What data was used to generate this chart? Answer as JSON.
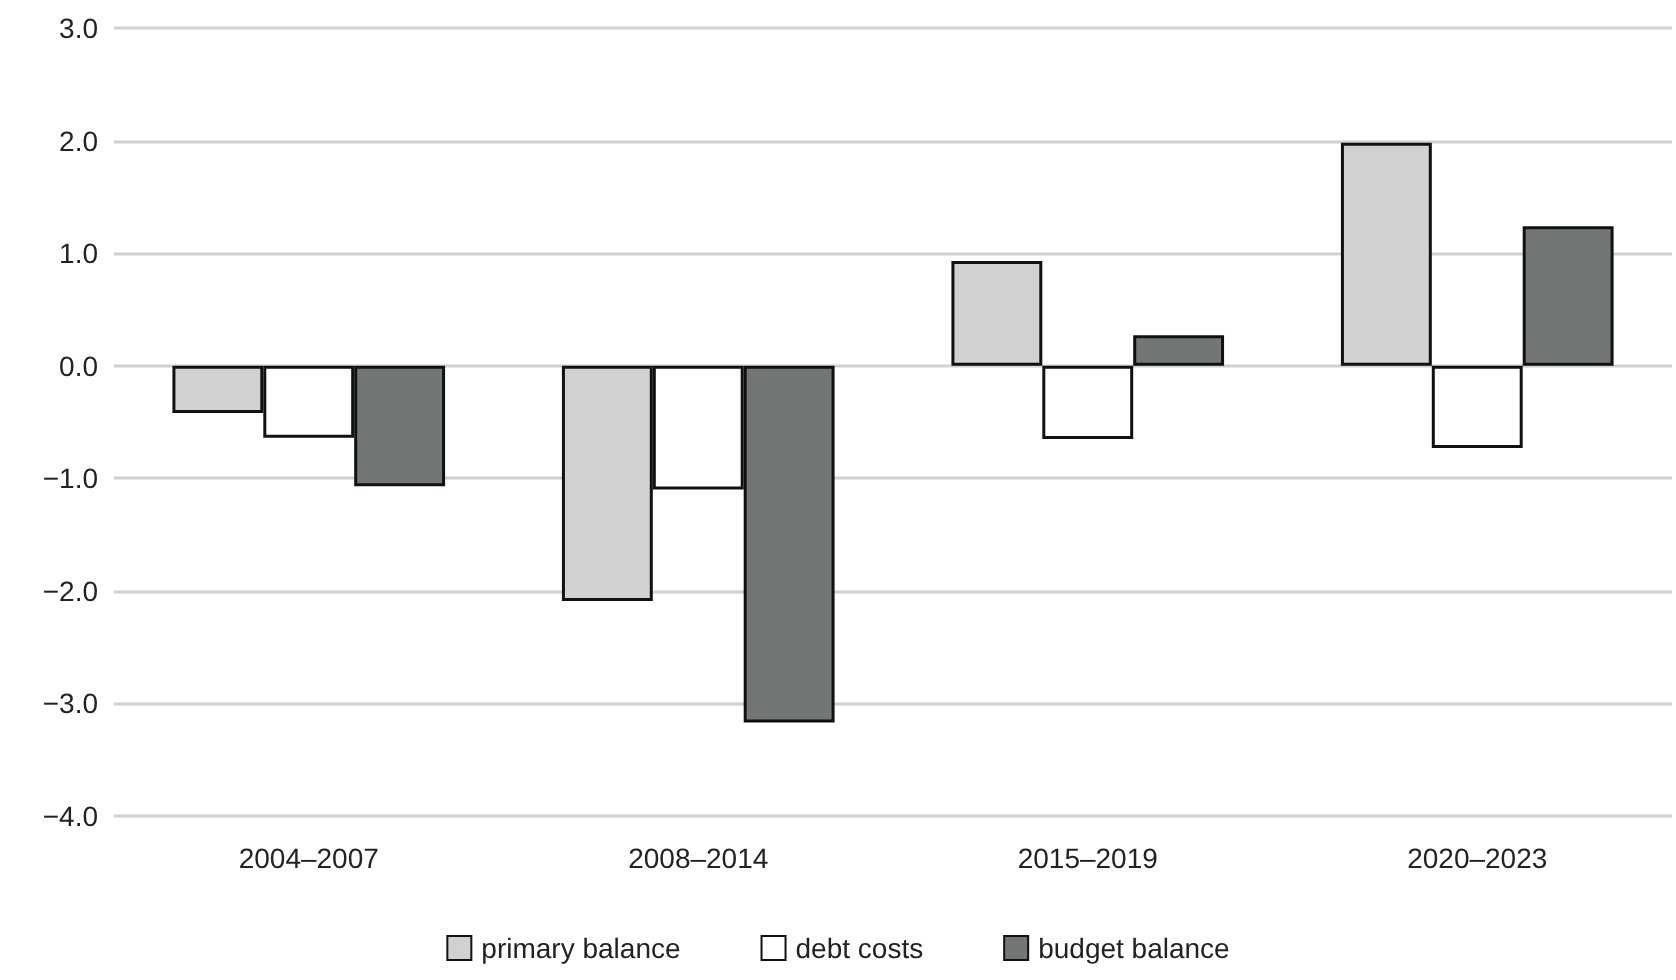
{
  "chart_data": {
    "type": "bar",
    "categories": [
      "2004–2007",
      "2008–2014",
      "2015–2019",
      "2020–2023"
    ],
    "series": [
      {
        "name": "primary balance",
        "color": "#d0d1d0",
        "values": [
          -0.42,
          -2.09,
          0.93,
          1.98
        ]
      },
      {
        "name": "debt costs",
        "color": "#ffffff",
        "values": [
          -0.64,
          -1.1,
          -0.65,
          -0.73
        ]
      },
      {
        "name": "budget balance",
        "color": "#737677",
        "values": [
          -1.07,
          -3.17,
          0.27,
          1.24
        ]
      }
    ],
    "ylim": [
      -4,
      3
    ],
    "yticks": [
      {
        "value": -4,
        "label": "−4.0"
      },
      {
        "value": -3,
        "label": "−3.0"
      },
      {
        "value": -2,
        "label": "−2.0"
      },
      {
        "value": -1,
        "label": "−1.0"
      },
      {
        "value": 0,
        "label": "0.0"
      },
      {
        "value": 1,
        "label": "1.0"
      },
      {
        "value": 2,
        "label": "2.0"
      },
      {
        "value": 3,
        "label": "3.0"
      }
    ],
    "grid": "y",
    "legend": "bottom"
  }
}
